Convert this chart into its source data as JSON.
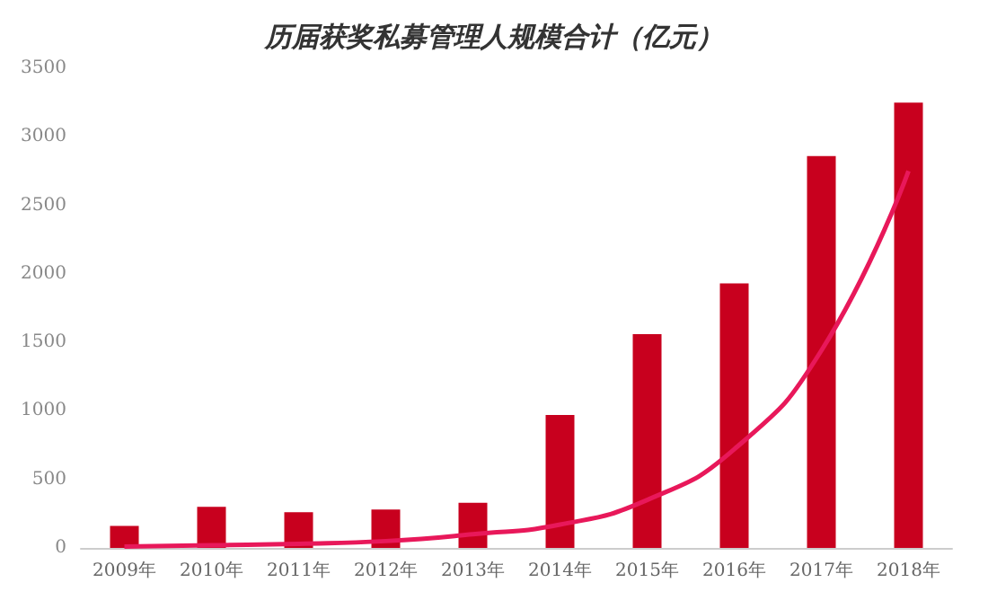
{
  "chart_data": {
    "type": "bar",
    "title": "历届获奖私募管理人规模合计（亿元）",
    "categories": [
      "2009年",
      "2010年",
      "2011年",
      "2012年",
      "2013年",
      "2014年",
      "2015年",
      "2016年",
      "2017年",
      "2018年"
    ],
    "series": [
      {
        "color": "#c8001e",
        "values": [
          160,
          300,
          260,
          280,
          330,
          970,
          1560,
          1930,
          2860,
          3250
        ]
      },
      {
        "type": "line",
        "color": "#e8185a",
        "marker": "none",
        "x": [
          "2009年",
          "2010年",
          "2011年",
          "2012年",
          "2013年",
          "2014年",
          "2015年",
          "2016年",
          "2017年",
          "2018年"
        ],
        "values": [
          10,
          20,
          30,
          50,
          100,
          170,
          350,
          720,
          1440,
          2750
        ]
      }
    ],
    "ylim": [
      0,
      3500
    ],
    "yticks": [
      0,
      500,
      1000,
      1500,
      2000,
      2500,
      3000,
      3500
    ],
    "grid": false
  }
}
